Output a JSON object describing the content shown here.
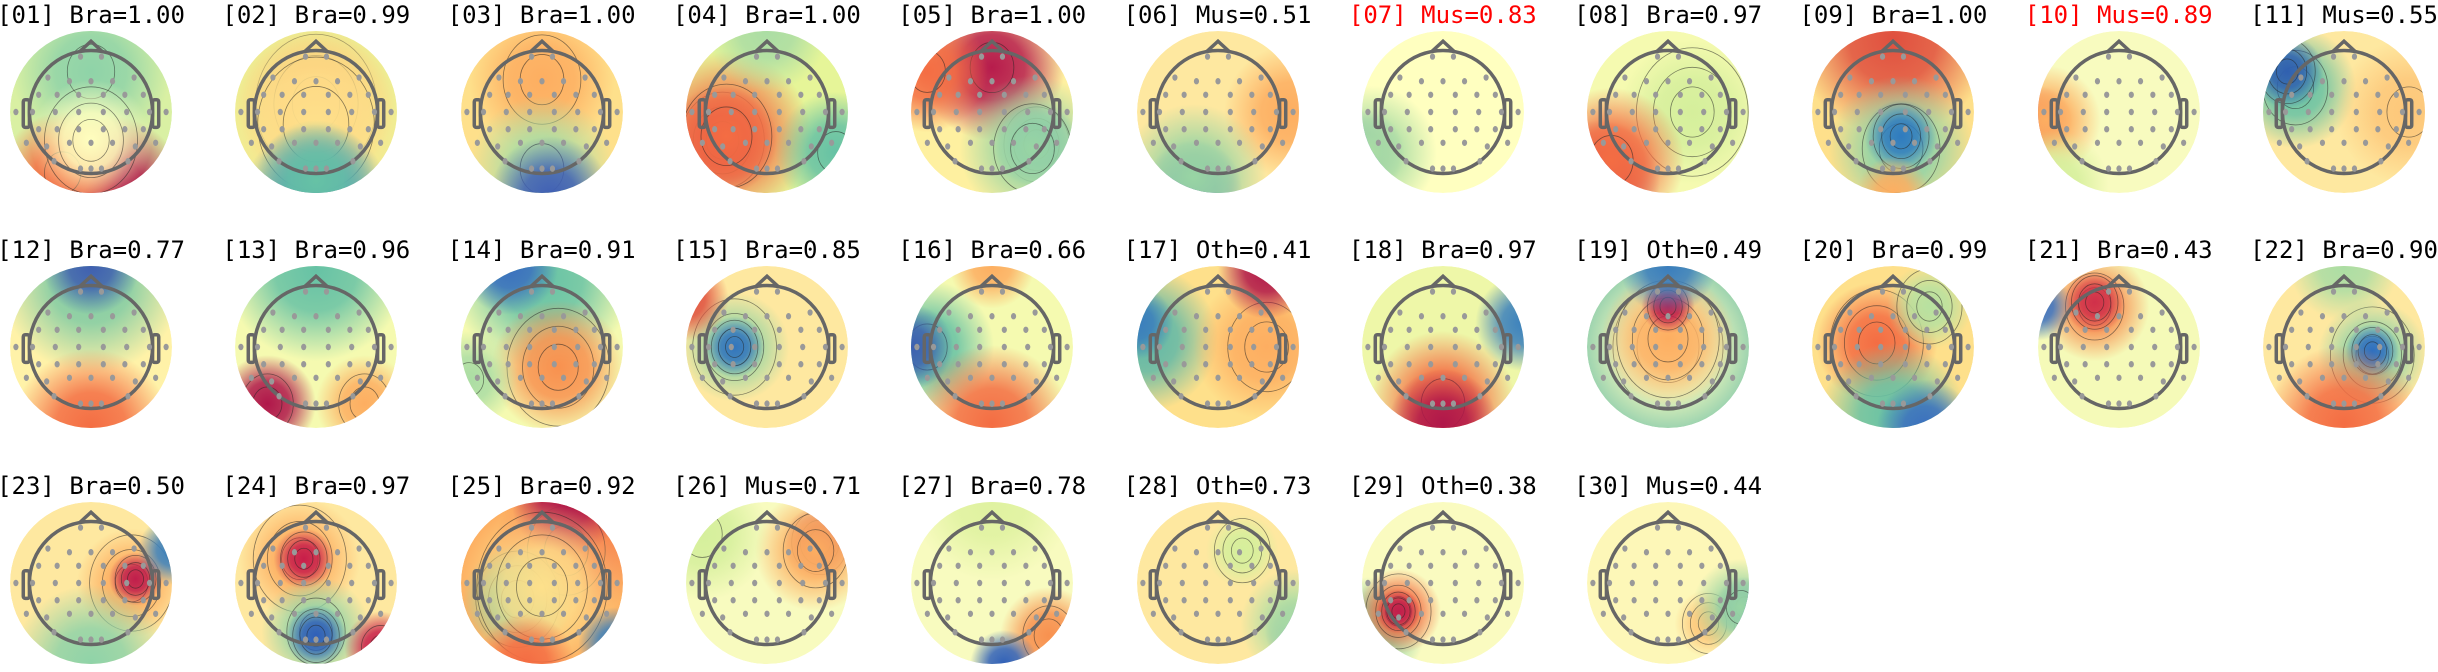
{
  "chart_data": {
    "type": "heatmap",
    "colormap": "Spectral_r",
    "grid": false,
    "panels": [
      {
        "title": "[01] Bra=1.00",
        "component": "01",
        "category": "Bra",
        "score": 1.0,
        "title_color": "#000000"
      },
      {
        "title": "[02] Bra=0.99",
        "component": "02",
        "category": "Bra",
        "score": 0.99,
        "title_color": "#000000"
      },
      {
        "title": "[03] Bra=1.00",
        "component": "03",
        "category": "Bra",
        "score": 1.0,
        "title_color": "#000000"
      },
      {
        "title": "[04] Bra=1.00",
        "component": "04",
        "category": "Bra",
        "score": 1.0,
        "title_color": "#000000"
      },
      {
        "title": "[05] Bra=1.00",
        "component": "05",
        "category": "Bra",
        "score": 1.0,
        "title_color": "#000000"
      },
      {
        "title": "[06] Mus=0.51",
        "component": "06",
        "category": "Mus",
        "score": 0.51,
        "title_color": "#000000"
      },
      {
        "title": "[07] Mus=0.83",
        "component": "07",
        "category": "Mus",
        "score": 0.83,
        "title_color": "#ff0000"
      },
      {
        "title": "[08] Bra=0.97",
        "component": "08",
        "category": "Bra",
        "score": 0.97,
        "title_color": "#000000"
      },
      {
        "title": "[09] Bra=1.00",
        "component": "09",
        "category": "Bra",
        "score": 1.0,
        "title_color": "#000000"
      },
      {
        "title": "[10] Mus=0.89",
        "component": "10",
        "category": "Mus",
        "score": 0.89,
        "title_color": "#ff0000"
      },
      {
        "title": "[11] Mus=0.55",
        "component": "11",
        "category": "Mus",
        "score": 0.55,
        "title_color": "#000000"
      },
      {
        "title": "[12] Bra=0.77",
        "component": "12",
        "category": "Bra",
        "score": 0.77,
        "title_color": "#000000"
      },
      {
        "title": "[13] Bra=0.96",
        "component": "13",
        "category": "Bra",
        "score": 0.96,
        "title_color": "#000000"
      },
      {
        "title": "[14] Bra=0.91",
        "component": "14",
        "category": "Bra",
        "score": 0.91,
        "title_color": "#000000"
      },
      {
        "title": "[15] Bra=0.85",
        "component": "15",
        "category": "Bra",
        "score": 0.85,
        "title_color": "#000000"
      },
      {
        "title": "[16] Bra=0.66",
        "component": "16",
        "category": "Bra",
        "score": 0.66,
        "title_color": "#000000"
      },
      {
        "title": "[17] Oth=0.41",
        "component": "17",
        "category": "Oth",
        "score": 0.41,
        "title_color": "#000000"
      },
      {
        "title": "[18] Bra=0.97",
        "component": "18",
        "category": "Bra",
        "score": 0.97,
        "title_color": "#000000"
      },
      {
        "title": "[19] Oth=0.49",
        "component": "19",
        "category": "Oth",
        "score": 0.49,
        "title_color": "#000000"
      },
      {
        "title": "[20] Bra=0.99",
        "component": "20",
        "category": "Bra",
        "score": 0.99,
        "title_color": "#000000"
      },
      {
        "title": "[21] Bra=0.43",
        "component": "21",
        "category": "Bra",
        "score": 0.43,
        "title_color": "#000000"
      },
      {
        "title": "[22] Bra=0.90",
        "component": "22",
        "category": "Bra",
        "score": 0.9,
        "title_color": "#000000"
      },
      {
        "title": "[23] Bra=0.50",
        "component": "23",
        "category": "Bra",
        "score": 0.5,
        "title_color": "#000000"
      },
      {
        "title": "[24] Bra=0.97",
        "component": "24",
        "category": "Bra",
        "score": 0.97,
        "title_color": "#000000"
      },
      {
        "title": "[25] Bra=0.92",
        "component": "25",
        "category": "Bra",
        "score": 0.92,
        "title_color": "#000000"
      },
      {
        "title": "[26] Mus=0.71",
        "component": "26",
        "category": "Mus",
        "score": 0.71,
        "title_color": "#000000"
      },
      {
        "title": "[27] Bra=0.78",
        "component": "27",
        "category": "Bra",
        "score": 0.78,
        "title_color": "#000000"
      },
      {
        "title": "[28] Oth=0.73",
        "component": "28",
        "category": "Oth",
        "score": 0.73,
        "title_color": "#000000"
      },
      {
        "title": "[29] Oth=0.38",
        "component": "29",
        "category": "Oth",
        "score": 0.38,
        "title_color": "#000000"
      },
      {
        "title": "[30] Mus=0.44",
        "component": "30",
        "category": "Mus",
        "score": 0.44,
        "title_color": "#000000"
      }
    ]
  }
}
